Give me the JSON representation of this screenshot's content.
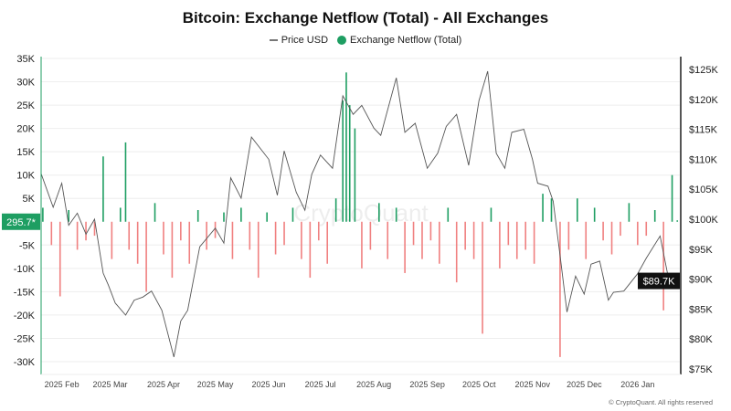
{
  "chart_data": {
    "type": "bar+line",
    "title": "Bitcoin: Exchange Netflow (Total) - All Exchanges",
    "legend": [
      {
        "name": "Price USD",
        "color": "#555555"
      },
      {
        "name": "Exchange Netflow (Total)",
        "color": "#1e9e62"
      }
    ],
    "legend_placement": "top-center",
    "grid": true,
    "xlim": [
      "2025-01-20",
      "2026-01-26"
    ],
    "x_ticks": [
      {
        "date": "2025-02-01",
        "label": "2025 Feb"
      },
      {
        "date": "2025-03-01",
        "label": "2025 Mar"
      },
      {
        "date": "2025-04-01",
        "label": "2025 Apr"
      },
      {
        "date": "2025-05-01",
        "label": "2025 May"
      },
      {
        "date": "2025-06-01",
        "label": "2025 Jun"
      },
      {
        "date": "2025-07-01",
        "label": "2025 Jul"
      },
      {
        "date": "2025-08-01",
        "label": "2025 Aug"
      },
      {
        "date": "2025-09-01",
        "label": "2025 Sep"
      },
      {
        "date": "2025-10-01",
        "label": "2025 Oct"
      },
      {
        "date": "2025-11-01",
        "label": "2025 Nov"
      },
      {
        "date": "2025-12-01",
        "label": "2025 Dec"
      },
      {
        "date": "2026-01-01",
        "label": "2026 Jan"
      }
    ],
    "y_left": {
      "ylim": [
        -32000,
        37000
      ],
      "ticks": [
        35000,
        30000,
        25000,
        20000,
        15000,
        10000,
        5000,
        -5000,
        -10000,
        -15000,
        -20000,
        -25000,
        -30000
      ],
      "tick_labels": [
        "35K",
        "30K",
        "25K",
        "20K",
        "15K",
        "10K",
        "5K",
        "-5K",
        "-10K",
        "-15K",
        "-20K",
        "-25K",
        "-30K"
      ]
    },
    "y_right": {
      "ylim": [
        74000,
        127000
      ],
      "ticks": [
        125000,
        120000,
        115000,
        110000,
        105000,
        100000,
        95000,
        90000,
        85000,
        80000,
        75000
      ],
      "tick_labels": [
        "$125K",
        "$120K",
        "$115K",
        "$110K",
        "$105K",
        "$100K",
        "$95K",
        "$90K",
        "$85K",
        "$80K",
        "$75K"
      ]
    },
    "current_netflow_label": "295.7*",
    "current_price_label": "$89.7K",
    "colors": {
      "inflow": "#1e9e62",
      "outflow": "#f08080",
      "price": "#555555",
      "netflow_badge": "#1e9e62",
      "price_badge": "#111111"
    },
    "price": [
      [
        "2025-01-20",
        107600
      ],
      [
        "2025-01-27",
        102000
      ],
      [
        "2025-02-01",
        106000
      ],
      [
        "2025-02-05",
        99000
      ],
      [
        "2025-02-10",
        101000
      ],
      [
        "2025-02-15",
        97500
      ],
      [
        "2025-02-20",
        100000
      ],
      [
        "2025-02-25",
        91000
      ],
      [
        "2025-02-28",
        89000
      ],
      [
        "2025-03-04",
        86000
      ],
      [
        "2025-03-10",
        84000
      ],
      [
        "2025-03-15",
        86500
      ],
      [
        "2025-03-20",
        87000
      ],
      [
        "2025-03-25",
        88000
      ],
      [
        "2025-03-31",
        84800
      ],
      [
        "2025-04-07",
        77000
      ],
      [
        "2025-04-11",
        83000
      ],
      [
        "2025-04-15",
        84800
      ],
      [
        "2025-04-22",
        95400
      ],
      [
        "2025-05-01",
        98500
      ],
      [
        "2025-05-06",
        96000
      ],
      [
        "2025-05-10",
        106900
      ],
      [
        "2025-05-16",
        103500
      ],
      [
        "2025-05-22",
        113700
      ],
      [
        "2025-06-01",
        110000
      ],
      [
        "2025-06-06",
        104000
      ],
      [
        "2025-06-10",
        111400
      ],
      [
        "2025-06-17",
        104500
      ],
      [
        "2025-06-22",
        101500
      ],
      [
        "2025-06-26",
        107500
      ],
      [
        "2025-07-01",
        110700
      ],
      [
        "2025-07-08",
        108500
      ],
      [
        "2025-07-14",
        120600
      ],
      [
        "2025-07-20",
        117500
      ],
      [
        "2025-07-25",
        119000
      ],
      [
        "2025-08-01",
        115200
      ],
      [
        "2025-08-05",
        114000
      ],
      [
        "2025-08-14",
        123600
      ],
      [
        "2025-08-19",
        114500
      ],
      [
        "2025-08-25",
        116000
      ],
      [
        "2025-09-01",
        108500
      ],
      [
        "2025-09-07",
        111000
      ],
      [
        "2025-09-12",
        115500
      ],
      [
        "2025-09-18",
        117500
      ],
      [
        "2025-09-25",
        109000
      ],
      [
        "2025-10-01",
        119800
      ],
      [
        "2025-10-06",
        124700
      ],
      [
        "2025-10-11",
        111000
      ],
      [
        "2025-10-16",
        108500
      ],
      [
        "2025-10-20",
        114500
      ],
      [
        "2025-10-27",
        115000
      ],
      [
        "2025-11-01",
        110000
      ],
      [
        "2025-11-04",
        106000
      ],
      [
        "2025-11-10",
        105500
      ],
      [
        "2025-11-13",
        103000
      ],
      [
        "2025-11-17",
        94000
      ],
      [
        "2025-11-21",
        84500
      ],
      [
        "2025-11-26",
        90500
      ],
      [
        "2025-12-01",
        87500
      ],
      [
        "2025-12-05",
        92500
      ],
      [
        "2025-12-10",
        93000
      ],
      [
        "2025-12-15",
        86500
      ],
      [
        "2025-12-18",
        87800
      ],
      [
        "2025-12-24",
        88000
      ],
      [
        "2026-01-01",
        90900
      ],
      [
        "2026-01-06",
        93500
      ],
      [
        "2026-01-14",
        97200
      ],
      [
        "2026-01-20",
        88500
      ],
      [
        "2026-01-24",
        89700
      ]
    ],
    "netflow": [
      [
        "2025-01-21",
        3000
      ],
      [
        "2025-01-26",
        -5000
      ],
      [
        "2025-01-31",
        -16000
      ],
      [
        "2025-02-05",
        2500
      ],
      [
        "2025-02-10",
        -6000
      ],
      [
        "2025-02-15",
        -4000
      ],
      [
        "2025-02-20",
        -3000
      ],
      [
        "2025-02-25",
        14000
      ],
      [
        "2025-03-02",
        -8000
      ],
      [
        "2025-03-07",
        3000
      ],
      [
        "2025-03-10",
        17000
      ],
      [
        "2025-03-12",
        -6000
      ],
      [
        "2025-03-17",
        -9000
      ],
      [
        "2025-03-22",
        -15000
      ],
      [
        "2025-03-27",
        4000
      ],
      [
        "2025-04-01",
        -7000
      ],
      [
        "2025-04-06",
        -12000
      ],
      [
        "2025-04-11",
        -4000
      ],
      [
        "2025-04-16",
        -9000
      ],
      [
        "2025-04-21",
        2500
      ],
      [
        "2025-04-26",
        -6000
      ],
      [
        "2025-05-01",
        -3500
      ],
      [
        "2025-05-06",
        2000
      ],
      [
        "2025-05-11",
        -8000
      ],
      [
        "2025-05-16",
        3000
      ],
      [
        "2025-05-21",
        -6000
      ],
      [
        "2025-05-26",
        -12000
      ],
      [
        "2025-05-31",
        2000
      ],
      [
        "2025-06-05",
        -7000
      ],
      [
        "2025-06-10",
        -5000
      ],
      [
        "2025-06-15",
        3000
      ],
      [
        "2025-06-20",
        -8000
      ],
      [
        "2025-06-25",
        -12000
      ],
      [
        "2025-06-30",
        -4000
      ],
      [
        "2025-07-05",
        -9000
      ],
      [
        "2025-07-10",
        5000
      ],
      [
        "2025-07-14",
        26000
      ],
      [
        "2025-07-16",
        32000
      ],
      [
        "2025-07-18",
        25000
      ],
      [
        "2025-07-21",
        20000
      ],
      [
        "2025-07-25",
        -10000
      ],
      [
        "2025-07-30",
        -6000
      ],
      [
        "2025-08-04",
        4000
      ],
      [
        "2025-08-09",
        -8000
      ],
      [
        "2025-08-14",
        3000
      ],
      [
        "2025-08-19",
        -11000
      ],
      [
        "2025-08-24",
        -5000
      ],
      [
        "2025-08-29",
        -8000
      ],
      [
        "2025-09-03",
        -4000
      ],
      [
        "2025-09-08",
        -9000
      ],
      [
        "2025-09-13",
        3000
      ],
      [
        "2025-09-18",
        -13000
      ],
      [
        "2025-09-23",
        -6000
      ],
      [
        "2025-09-28",
        -8000
      ],
      [
        "2025-10-03",
        -24000
      ],
      [
        "2025-10-08",
        3000
      ],
      [
        "2025-10-13",
        -10000
      ],
      [
        "2025-10-18",
        -5000
      ],
      [
        "2025-10-23",
        -8000
      ],
      [
        "2025-10-28",
        -6000
      ],
      [
        "2025-11-02",
        -9000
      ],
      [
        "2025-11-07",
        6000
      ],
      [
        "2025-11-12",
        5000
      ],
      [
        "2025-11-17",
        -29000
      ],
      [
        "2025-11-22",
        -6000
      ],
      [
        "2025-11-27",
        5000
      ],
      [
        "2025-12-02",
        -8000
      ],
      [
        "2025-12-07",
        3000
      ],
      [
        "2025-12-12",
        -4000
      ],
      [
        "2025-12-17",
        -7000
      ],
      [
        "2025-12-22",
        -3000
      ],
      [
        "2025-12-27",
        4000
      ],
      [
        "2026-01-01",
        -5000
      ],
      [
        "2026-01-06",
        -3000
      ],
      [
        "2026-01-11",
        2500
      ],
      [
        "2026-01-16",
        -19000
      ],
      [
        "2026-01-21",
        10000
      ],
      [
        "2026-01-24",
        296
      ]
    ]
  },
  "watermark": "CryptoQuant",
  "footer": "© CryptoQuant. All rights reserved"
}
